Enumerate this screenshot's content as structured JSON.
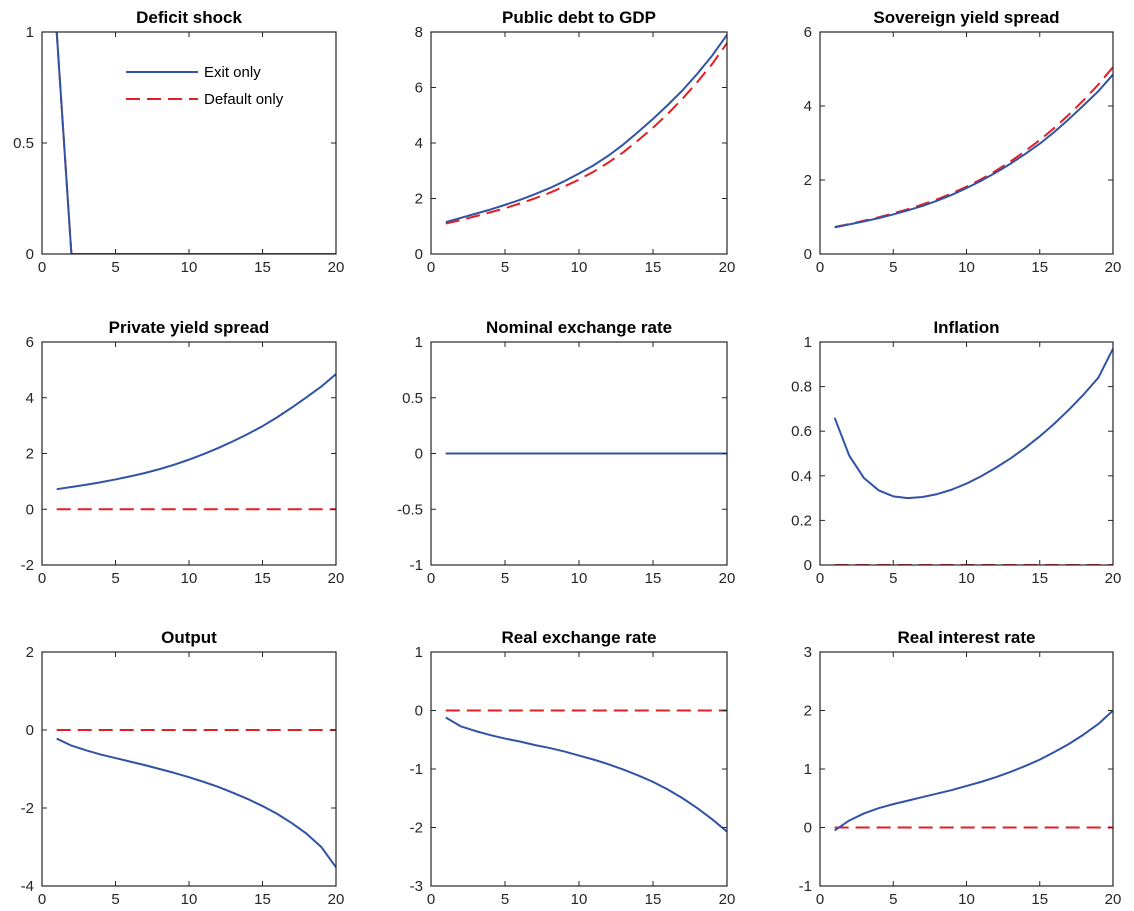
{
  "legend": {
    "entries": [
      "Exit only",
      "Default only"
    ],
    "placement": "top-right",
    "panel": 0
  },
  "colors": {
    "exit_only": "#3153a5",
    "default_only": "#e41e26",
    "axes": "#262626"
  },
  "chart_data": [
    {
      "type": "line",
      "title": "Deficit shock",
      "xlim": [
        0,
        20
      ],
      "ylim": [
        0,
        1
      ],
      "xticks": [
        0,
        5,
        10,
        15,
        20
      ],
      "yticks": [
        0,
        0.5,
        1
      ],
      "ytick_labels": [
        "0",
        "0.5",
        "1"
      ],
      "x": [
        1,
        2,
        3,
        4,
        5,
        6,
        7,
        8,
        9,
        10,
        11,
        12,
        13,
        14,
        15,
        16,
        17,
        18,
        19,
        20
      ],
      "series": [
        {
          "name": "Exit only",
          "values": [
            1,
            0,
            0,
            0,
            0,
            0,
            0,
            0,
            0,
            0,
            0,
            0,
            0,
            0,
            0,
            0,
            0,
            0,
            0,
            0
          ]
        },
        {
          "name": "Default only",
          "values": [
            1,
            0,
            0,
            0,
            0,
            0,
            0,
            0,
            0,
            0,
            0,
            0,
            0,
            0,
            0,
            0,
            0,
            0,
            0,
            0
          ]
        }
      ]
    },
    {
      "type": "line",
      "title": "Public debt to GDP",
      "xlim": [
        0,
        20
      ],
      "ylim": [
        0,
        8
      ],
      "xticks": [
        0,
        5,
        10,
        15,
        20
      ],
      "yticks": [
        0,
        2,
        4,
        6,
        8
      ],
      "ytick_labels": [
        "0",
        "2",
        "4",
        "6",
        "8"
      ],
      "x": [
        1,
        2,
        3,
        4,
        5,
        6,
        7,
        8,
        9,
        10,
        11,
        12,
        13,
        14,
        15,
        16,
        17,
        18,
        19,
        20
      ],
      "series": [
        {
          "name": "Exit only",
          "values": [
            1.15,
            1.3,
            1.45,
            1.6,
            1.77,
            1.95,
            2.15,
            2.37,
            2.62,
            2.9,
            3.2,
            3.55,
            3.95,
            4.4,
            4.87,
            5.37,
            5.9,
            6.5,
            7.15,
            7.9
          ]
        },
        {
          "name": "Default only",
          "values": [
            1.1,
            1.22,
            1.36,
            1.5,
            1.65,
            1.82,
            2.0,
            2.2,
            2.43,
            2.68,
            2.97,
            3.3,
            3.67,
            4.1,
            4.55,
            5.05,
            5.6,
            6.2,
            6.85,
            7.6
          ]
        }
      ]
    },
    {
      "type": "line",
      "title": "Sovereign yield spread",
      "xlim": [
        0,
        20
      ],
      "ylim": [
        0,
        6
      ],
      "xticks": [
        0,
        5,
        10,
        15,
        20
      ],
      "yticks": [
        0,
        2,
        4,
        6
      ],
      "ytick_labels": [
        "0",
        "2",
        "4",
        "6"
      ],
      "x": [
        1,
        2,
        3,
        4,
        5,
        6,
        7,
        8,
        9,
        10,
        11,
        12,
        13,
        14,
        15,
        16,
        17,
        18,
        19,
        20
      ],
      "series": [
        {
          "name": "Exit only",
          "values": [
            0.72,
            0.8,
            0.88,
            0.97,
            1.07,
            1.18,
            1.3,
            1.44,
            1.6,
            1.78,
            1.98,
            2.2,
            2.44,
            2.7,
            2.98,
            3.3,
            3.65,
            4.02,
            4.4,
            4.85
          ]
        },
        {
          "name": "Default only",
          "values": [
            0.73,
            0.81,
            0.9,
            0.99,
            1.1,
            1.21,
            1.34,
            1.48,
            1.64,
            1.82,
            2.02,
            2.25,
            2.5,
            2.78,
            3.08,
            3.41,
            3.77,
            4.16,
            4.58,
            5.05
          ]
        }
      ]
    },
    {
      "type": "line",
      "title": "Private yield spread",
      "xlim": [
        0,
        20
      ],
      "ylim": [
        -2,
        6
      ],
      "xticks": [
        0,
        5,
        10,
        15,
        20
      ],
      "yticks": [
        -2,
        0,
        2,
        4,
        6
      ],
      "ytick_labels": [
        "-2",
        "0",
        "2",
        "4",
        "6"
      ],
      "x": [
        1,
        2,
        3,
        4,
        5,
        6,
        7,
        8,
        9,
        10,
        11,
        12,
        13,
        14,
        15,
        16,
        17,
        18,
        19,
        20
      ],
      "series": [
        {
          "name": "Exit only",
          "values": [
            0.72,
            0.8,
            0.88,
            0.97,
            1.07,
            1.18,
            1.3,
            1.44,
            1.6,
            1.78,
            1.98,
            2.2,
            2.44,
            2.7,
            2.98,
            3.3,
            3.65,
            4.02,
            4.4,
            4.85
          ]
        },
        {
          "name": "Default only",
          "values": [
            0,
            0,
            0,
            0,
            0,
            0,
            0,
            0,
            0,
            0,
            0,
            0,
            0,
            0,
            0,
            0,
            0,
            0,
            0,
            0
          ]
        }
      ]
    },
    {
      "type": "line",
      "title": "Nominal exchange rate",
      "xlim": [
        0,
        20
      ],
      "ylim": [
        -1,
        1
      ],
      "xticks": [
        0,
        5,
        10,
        15,
        20
      ],
      "yticks": [
        -1,
        -0.5,
        0,
        0.5,
        1
      ],
      "ytick_labels": [
        "-1",
        "-0.5",
        "0",
        "0.5",
        "1"
      ],
      "x": [
        1,
        2,
        3,
        4,
        5,
        6,
        7,
        8,
        9,
        10,
        11,
        12,
        13,
        14,
        15,
        16,
        17,
        18,
        19,
        20
      ],
      "series": [
        {
          "name": "Exit only",
          "values": [
            0,
            0,
            0,
            0,
            0,
            0,
            0,
            0,
            0,
            0,
            0,
            0,
            0,
            0,
            0,
            0,
            0,
            0,
            0,
            0
          ]
        },
        {
          "name": "Default only",
          "values": [
            0,
            0,
            0,
            0,
            0,
            0,
            0,
            0,
            0,
            0,
            0,
            0,
            0,
            0,
            0,
            0,
            0,
            0,
            0,
            0
          ]
        }
      ]
    },
    {
      "type": "line",
      "title": "Inflation",
      "xlim": [
        0,
        20
      ],
      "ylim": [
        0,
        1
      ],
      "xticks": [
        0,
        5,
        10,
        15,
        20
      ],
      "yticks": [
        0,
        0.2,
        0.4,
        0.6,
        0.8,
        1
      ],
      "ytick_labels": [
        "0",
        "0.2",
        "0.4",
        "0.6",
        "0.8",
        "1"
      ],
      "x": [
        1,
        2,
        3,
        4,
        5,
        6,
        7,
        8,
        9,
        10,
        11,
        12,
        13,
        14,
        15,
        16,
        17,
        18,
        19,
        20
      ],
      "series": [
        {
          "name": "Exit only",
          "values": [
            0.66,
            0.49,
            0.39,
            0.335,
            0.308,
            0.3,
            0.305,
            0.318,
            0.338,
            0.365,
            0.398,
            0.436,
            0.478,
            0.525,
            0.577,
            0.634,
            0.697,
            0.765,
            0.84,
            0.97
          ]
        },
        {
          "name": "Default only",
          "values": [
            0,
            0,
            0,
            0,
            0,
            0,
            0,
            0,
            0,
            0,
            0,
            0,
            0,
            0,
            0,
            0,
            0,
            0,
            0,
            0
          ]
        }
      ]
    },
    {
      "type": "line",
      "title": "Output",
      "xlim": [
        0,
        20
      ],
      "ylim": [
        -4,
        2
      ],
      "xticks": [
        0,
        5,
        10,
        15,
        20
      ],
      "yticks": [
        -4,
        -2,
        0,
        2
      ],
      "ytick_labels": [
        "-4",
        "-2",
        "0",
        "2"
      ],
      "x": [
        1,
        2,
        3,
        4,
        5,
        6,
        7,
        8,
        9,
        10,
        11,
        12,
        13,
        14,
        15,
        16,
        17,
        18,
        19,
        20
      ],
      "series": [
        {
          "name": "Exit only",
          "values": [
            -0.22,
            -0.4,
            -0.52,
            -0.63,
            -0.72,
            -0.81,
            -0.9,
            -1.0,
            -1.1,
            -1.21,
            -1.33,
            -1.46,
            -1.61,
            -1.77,
            -1.95,
            -2.15,
            -2.39,
            -2.66,
            -3.0,
            -3.52
          ]
        },
        {
          "name": "Default only",
          "values": [
            0,
            0,
            0,
            0,
            0,
            0,
            0,
            0,
            0,
            0,
            0,
            0,
            0,
            0,
            0,
            0,
            0,
            0,
            0,
            0
          ]
        }
      ]
    },
    {
      "type": "line",
      "title": "Real exchange rate",
      "xlim": [
        0,
        20
      ],
      "ylim": [
        -3,
        1
      ],
      "xticks": [
        0,
        5,
        10,
        15,
        20
      ],
      "yticks": [
        -3,
        -2,
        -1,
        0,
        1
      ],
      "ytick_labels": [
        "-3",
        "-2",
        "-1",
        "0",
        "1"
      ],
      "x": [
        1,
        2,
        3,
        4,
        5,
        6,
        7,
        8,
        9,
        10,
        11,
        12,
        13,
        14,
        15,
        16,
        17,
        18,
        19,
        20
      ],
      "series": [
        {
          "name": "Exit only",
          "values": [
            -0.12,
            -0.27,
            -0.35,
            -0.42,
            -0.48,
            -0.53,
            -0.59,
            -0.64,
            -0.7,
            -0.77,
            -0.84,
            -0.92,
            -1.01,
            -1.11,
            -1.22,
            -1.35,
            -1.5,
            -1.67,
            -1.86,
            -2.07
          ]
        },
        {
          "name": "Default only",
          "values": [
            0,
            0,
            0,
            0,
            0,
            0,
            0,
            0,
            0,
            0,
            0,
            0,
            0,
            0,
            0,
            0,
            0,
            0,
            0,
            0
          ]
        }
      ]
    },
    {
      "type": "line",
      "title": "Real interest rate",
      "xlim": [
        0,
        20
      ],
      "ylim": [
        -1,
        3
      ],
      "xticks": [
        0,
        5,
        10,
        15,
        20
      ],
      "yticks": [
        -1,
        0,
        1,
        2,
        3
      ],
      "ytick_labels": [
        "-1",
        "0",
        "1",
        "2",
        "3"
      ],
      "x": [
        1,
        2,
        3,
        4,
        5,
        6,
        7,
        8,
        9,
        10,
        11,
        12,
        13,
        14,
        15,
        16,
        17,
        18,
        19,
        20
      ],
      "series": [
        {
          "name": "Exit only",
          "values": [
            -0.05,
            0.12,
            0.24,
            0.33,
            0.4,
            0.46,
            0.52,
            0.58,
            0.64,
            0.71,
            0.78,
            0.86,
            0.95,
            1.05,
            1.16,
            1.29,
            1.43,
            1.59,
            1.77,
            2.0
          ]
        },
        {
          "name": "Default only",
          "values": [
            0,
            0,
            0,
            0,
            0,
            0,
            0,
            0,
            0,
            0,
            0,
            0,
            0,
            0,
            0,
            0,
            0,
            0,
            0,
            0
          ]
        }
      ]
    }
  ]
}
